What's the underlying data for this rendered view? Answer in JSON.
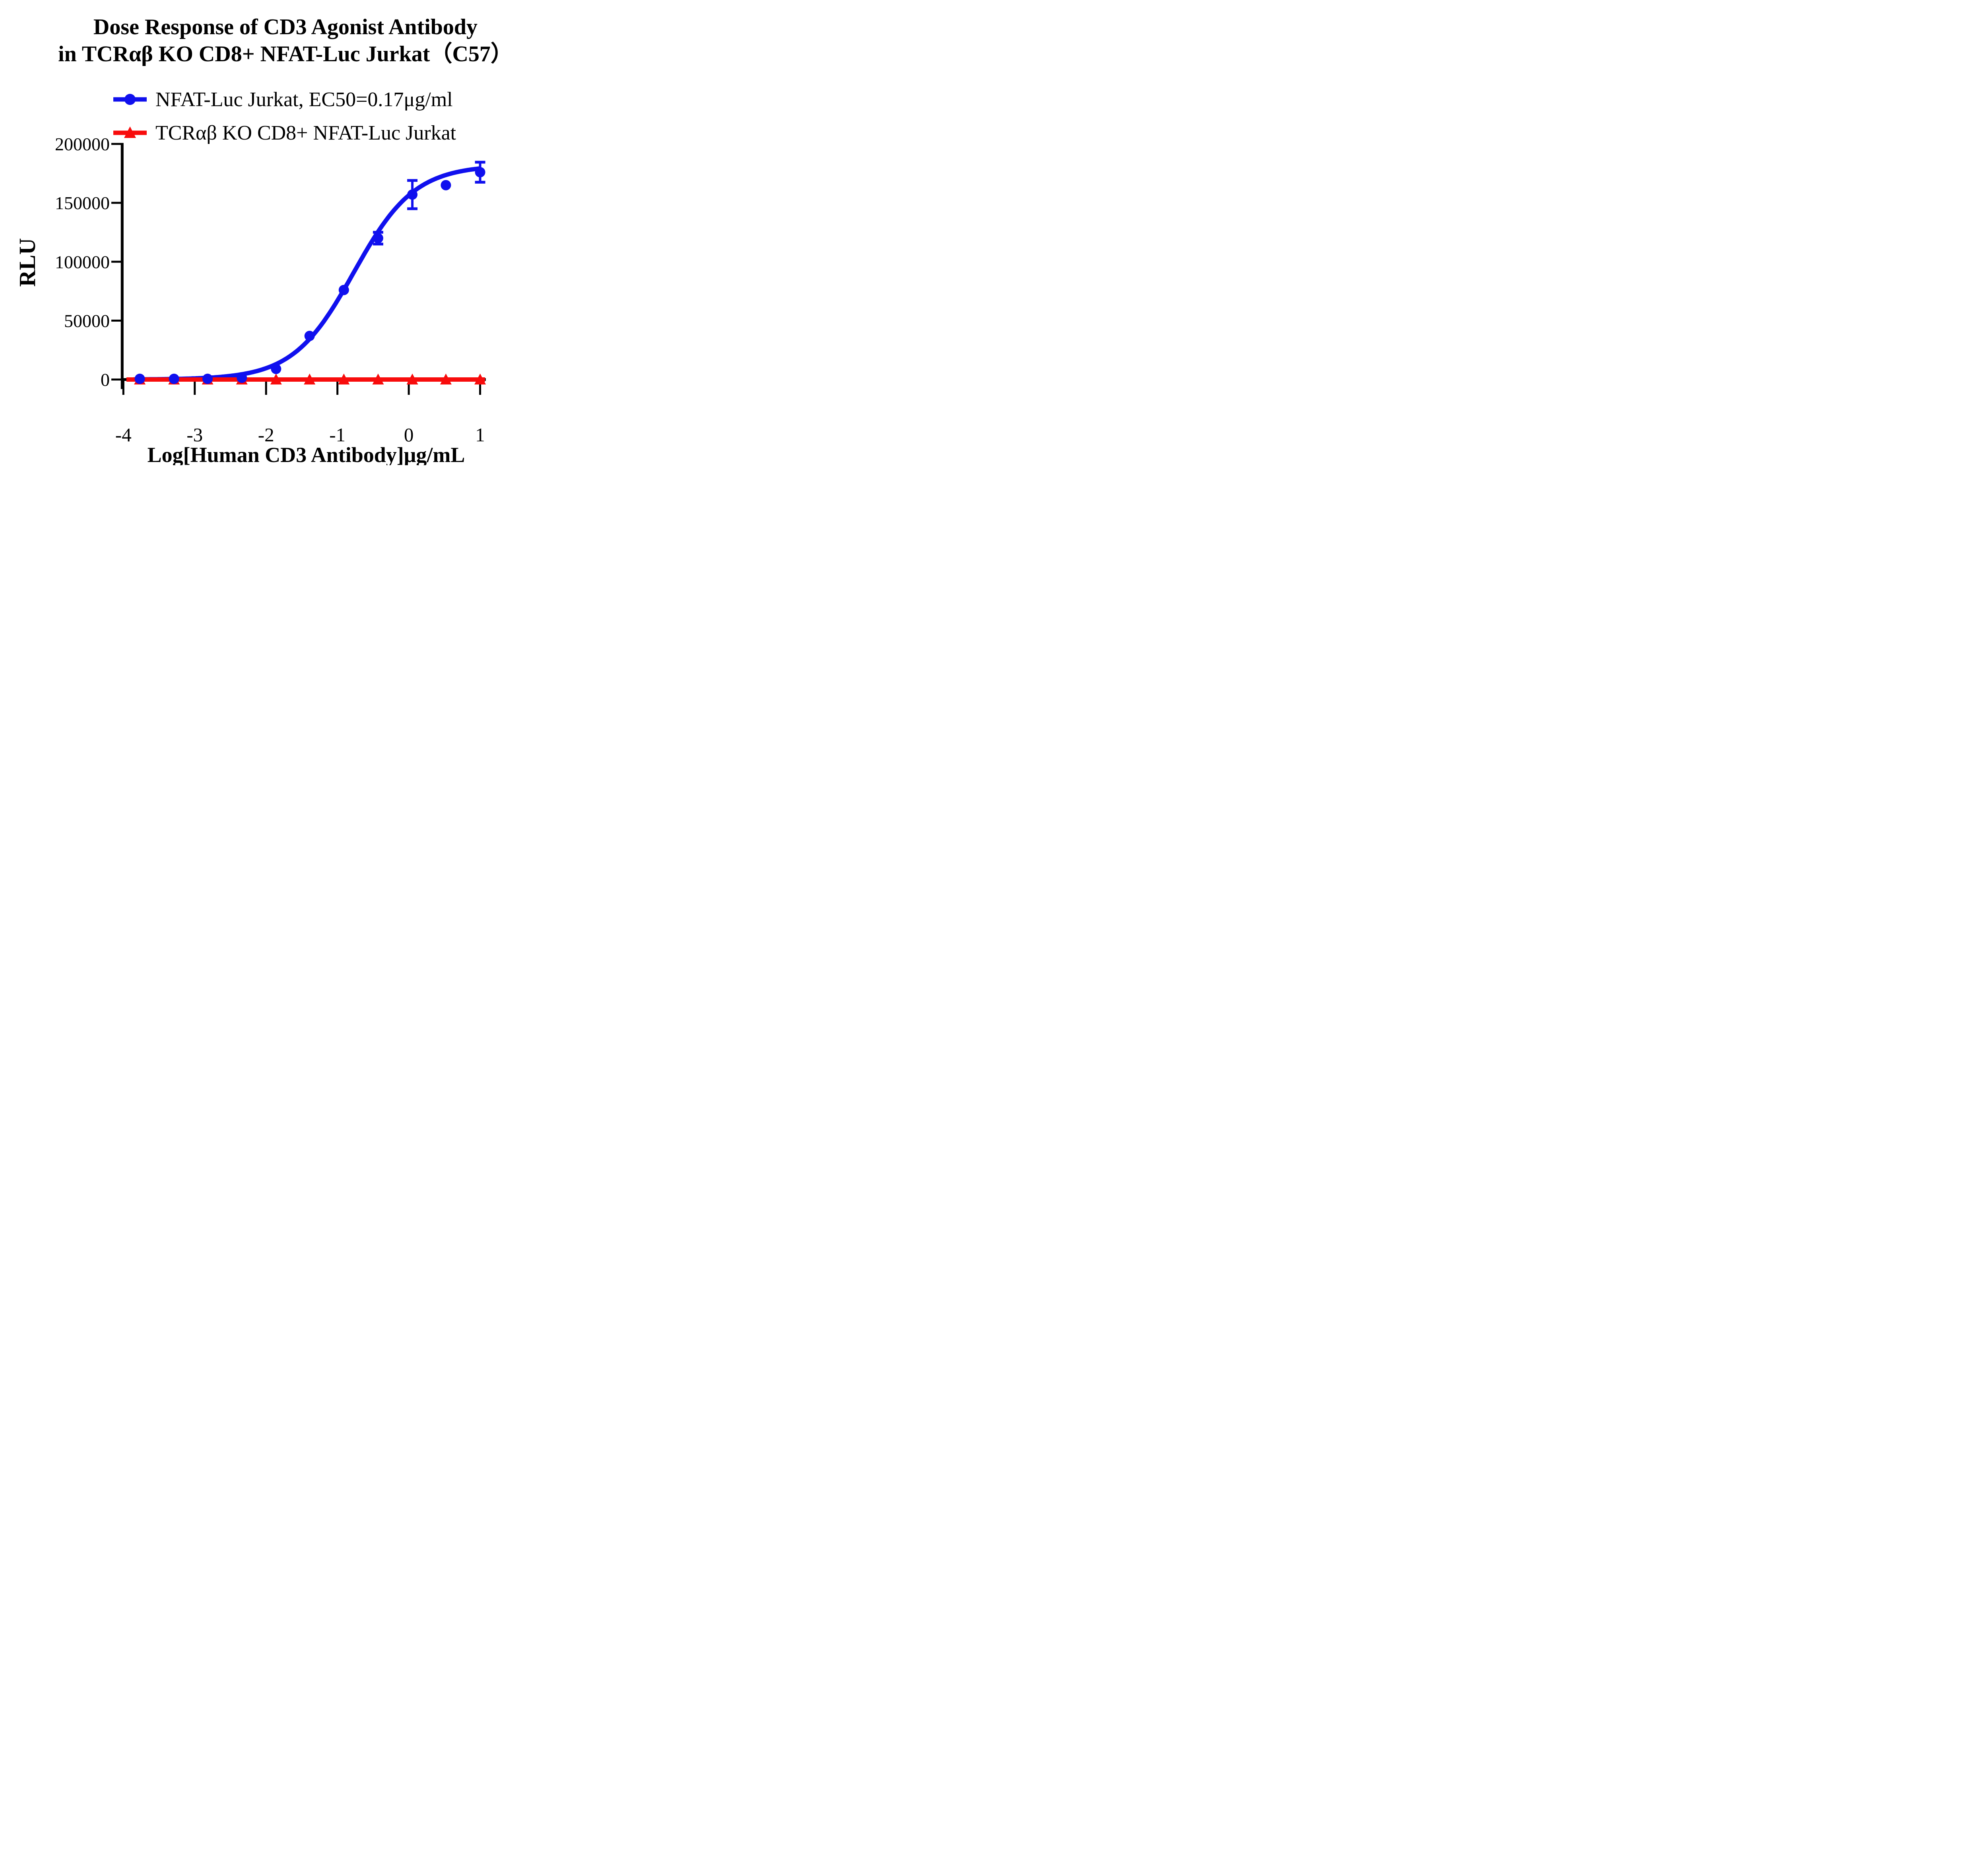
{
  "title": {
    "line1": "Dose Response of CD3 Agonist Antibody",
    "line2": "in TCRαβ KO CD8+ NFAT-Luc Jurkat（C57）"
  },
  "chart_data": {
    "type": "line",
    "title": "Dose Response of CD3 Agonist Antibody in TCRαβ KO CD8+ NFAT-Luc Jurkat（C57）",
    "xlabel": "Log[Human CD3 Antibody]μg/mL",
    "ylabel": "RLU",
    "xlim": [
      -4.05,
      1.1
    ],
    "ylim": [
      0,
      200000
    ],
    "x_ticks": [
      -4,
      -3,
      -2,
      -1,
      0,
      1
    ],
    "y_ticks": [
      0,
      50000,
      100000,
      150000,
      200000
    ],
    "grid": false,
    "legend_position": "top-left",
    "colors": {
      "background": "#ffffff",
      "axis": "#000000"
    },
    "series": [
      {
        "name": "NFAT-Luc Jurkat, EC50=0.17μg/ml",
        "color": "#1010ee",
        "marker": "circle",
        "x": [
          -3.77,
          -3.29,
          -2.82,
          -2.34,
          -1.86,
          -1.39,
          -0.91,
          -0.43,
          0.05,
          0.52,
          1.0
        ],
        "y": [
          600,
          600,
          600,
          1500,
          9000,
          37000,
          76000,
          120000,
          157000,
          165000,
          176000
        ],
        "y_error": [
          0,
          0,
          0,
          0,
          0,
          0,
          0,
          5000,
          12000,
          0,
          8500
        ],
        "ec50_ug_ml": 0.17,
        "fit": {
          "model": "4PL",
          "bottom": 0,
          "top": 182000,
          "logEC50": -0.77,
          "hill": 1.02
        }
      },
      {
        "name": "TCRαβ KO CD8+ NFAT-Luc Jurkat",
        "color": "#f80c0c",
        "marker": "triangle",
        "x": [
          -3.77,
          -3.29,
          -2.82,
          -2.34,
          -1.86,
          -1.39,
          -0.91,
          -0.43,
          0.05,
          0.52,
          1.0
        ],
        "y": [
          0,
          0,
          0,
          0,
          0,
          0,
          0,
          0,
          0,
          0,
          0
        ],
        "y_error": [
          0,
          0,
          0,
          0,
          0,
          0,
          0,
          0,
          0,
          0,
          0
        ]
      }
    ]
  }
}
